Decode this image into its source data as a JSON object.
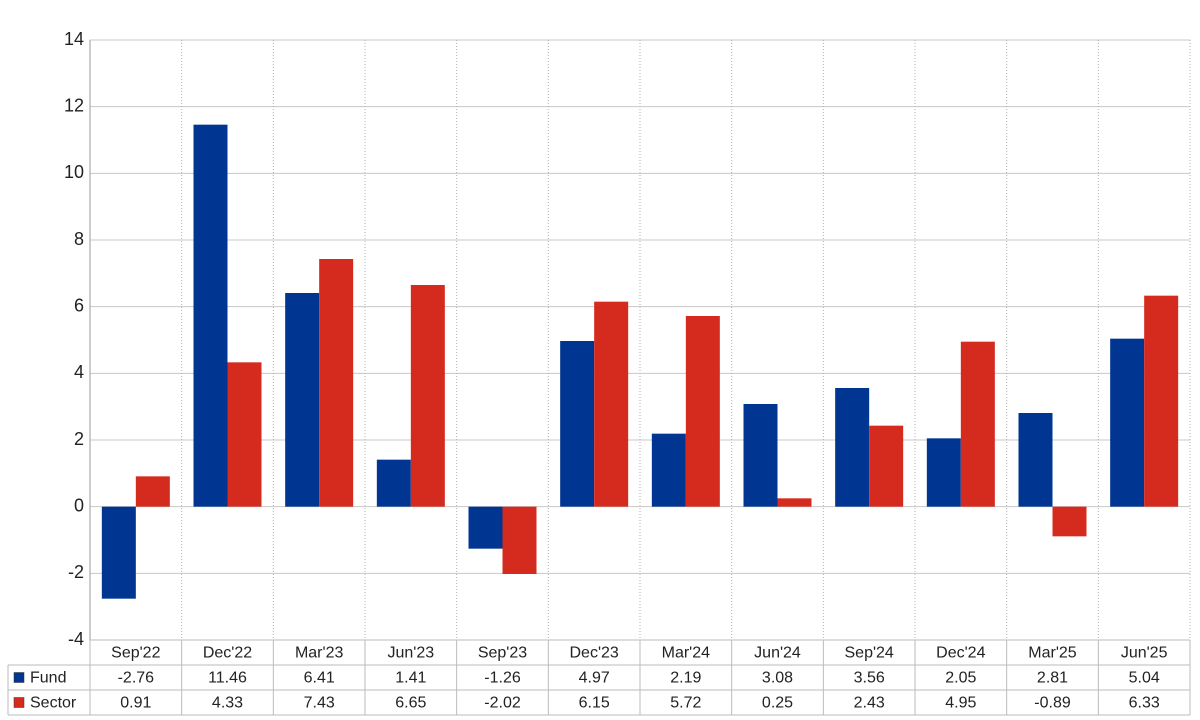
{
  "chart_data": {
    "type": "bar",
    "categories": [
      "Sep'22",
      "Dec'22",
      "Mar'23",
      "Jun'23",
      "Sep'23",
      "Dec'23",
      "Mar'24",
      "Jun'24",
      "Sep'24",
      "Dec'24",
      "Mar'25",
      "Jun'25"
    ],
    "series": [
      {
        "name": "Fund",
        "color": "#003591",
        "values": [
          -2.76,
          11.46,
          6.41,
          1.41,
          -1.26,
          4.97,
          2.19,
          3.08,
          3.56,
          2.05,
          2.81,
          5.04
        ]
      },
      {
        "name": "Sector",
        "color": "#d52b1e",
        "values": [
          0.91,
          4.33,
          7.43,
          6.65,
          -2.02,
          6.15,
          5.72,
          0.25,
          2.43,
          4.95,
          -0.89,
          6.33
        ]
      }
    ],
    "ylim": [
      -4,
      14
    ],
    "yticks": [
      -4,
      -2,
      0,
      2,
      4,
      6,
      8,
      10,
      12,
      14
    ],
    "grid": true,
    "negative_label_color": "#ff0000"
  }
}
